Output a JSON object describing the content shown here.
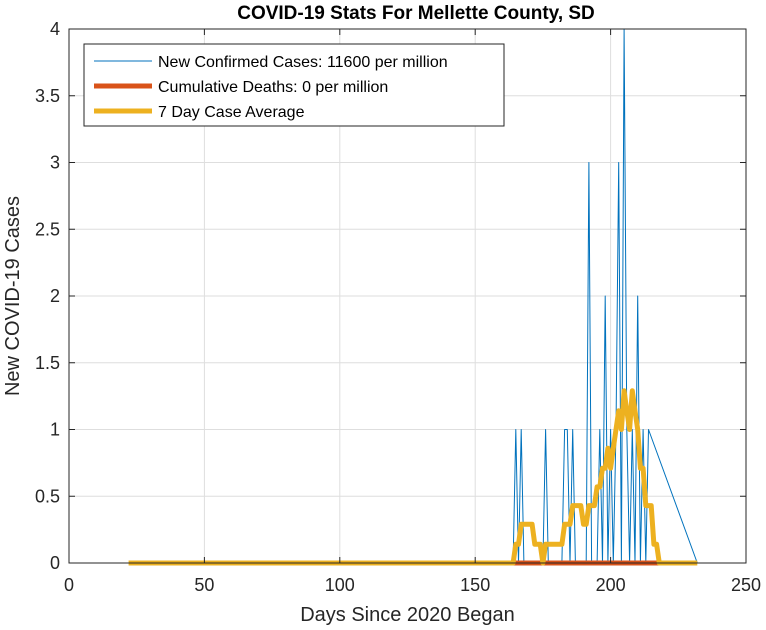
{
  "chart_data": {
    "type": "line",
    "title": "COVID-19 Stats For Mellette County, SD",
    "xlabel": "Days Since 2020 Began",
    "ylabel": "New COVID-19 Cases",
    "xlim": [
      0,
      250
    ],
    "ylim": [
      0,
      4
    ],
    "xticks": [
      0,
      50,
      100,
      150,
      200,
      250
    ],
    "yticks": [
      0,
      0.5,
      1,
      1.5,
      2,
      2.5,
      3,
      3.5,
      4
    ],
    "xtick_labels": [
      "0",
      "50",
      "100",
      "150",
      "200",
      "250"
    ],
    "ytick_labels": [
      "0",
      "0.5",
      "1",
      "1.5",
      "2",
      "2.5",
      "3",
      "3.5",
      "4"
    ],
    "grid": true,
    "legend_position": "top-left",
    "series": [
      {
        "name": "New Confirmed Cases: 11600 per million",
        "color": "#0072BD",
        "line_width": 1,
        "x": [
          22,
          164,
          165,
          166,
          167,
          168,
          169,
          175,
          176,
          177,
          182,
          183,
          184,
          185,
          186,
          187,
          191,
          192,
          193,
          195,
          196,
          197,
          198,
          199,
          200,
          201,
          202,
          203,
          204,
          205,
          206,
          207,
          208,
          209,
          210,
          211,
          212,
          213,
          214,
          232
        ],
        "y": [
          0,
          0,
          1,
          0,
          1,
          0,
          0,
          0,
          1,
          0,
          0,
          1,
          1,
          0,
          1,
          0,
          0,
          3,
          0,
          0,
          1,
          0,
          2,
          0,
          1,
          0,
          1,
          3,
          0,
          4,
          1,
          0,
          1,
          0,
          2,
          0,
          1,
          0,
          1,
          0
        ]
      },
      {
        "name": "Cumulative Deaths: 0 per million",
        "color": "#D95319",
        "line_width": 5,
        "x": [
          164,
          218
        ],
        "y": [
          0,
          0
        ]
      },
      {
        "name": "7 Day Case Average",
        "color": "#EDB120",
        "line_width": 5,
        "x": [
          22,
          164,
          165,
          166,
          167,
          168,
          169,
          171,
          172,
          173,
          174,
          175,
          176,
          177,
          181,
          182,
          183,
          184,
          185,
          186,
          187,
          188,
          189,
          190,
          191,
          192,
          193,
          194,
          195,
          196,
          197,
          198,
          199,
          200,
          201,
          202,
          203,
          204,
          205,
          206,
          207,
          208,
          209,
          210,
          211,
          212,
          213,
          214,
          215,
          216,
          217,
          218,
          219,
          232
        ],
        "y": [
          0,
          0,
          0.14,
          0.14,
          0.29,
          0.29,
          0.29,
          0.29,
          0.14,
          0.14,
          0.14,
          0,
          0.14,
          0.14,
          0.14,
          0.14,
          0.29,
          0.29,
          0.29,
          0.43,
          0.43,
          0.43,
          0.43,
          0.29,
          0.29,
          0.43,
          0.43,
          0.43,
          0.57,
          0.57,
          0.71,
          0.71,
          0.86,
          0.71,
          0.86,
          1.0,
          1.14,
          1.0,
          1.29,
          1.14,
          1.0,
          1.29,
          1.14,
          1.0,
          0.71,
          0.71,
          0.43,
          0.43,
          0.43,
          0.14,
          0.14,
          0,
          0,
          0
        ]
      }
    ]
  }
}
